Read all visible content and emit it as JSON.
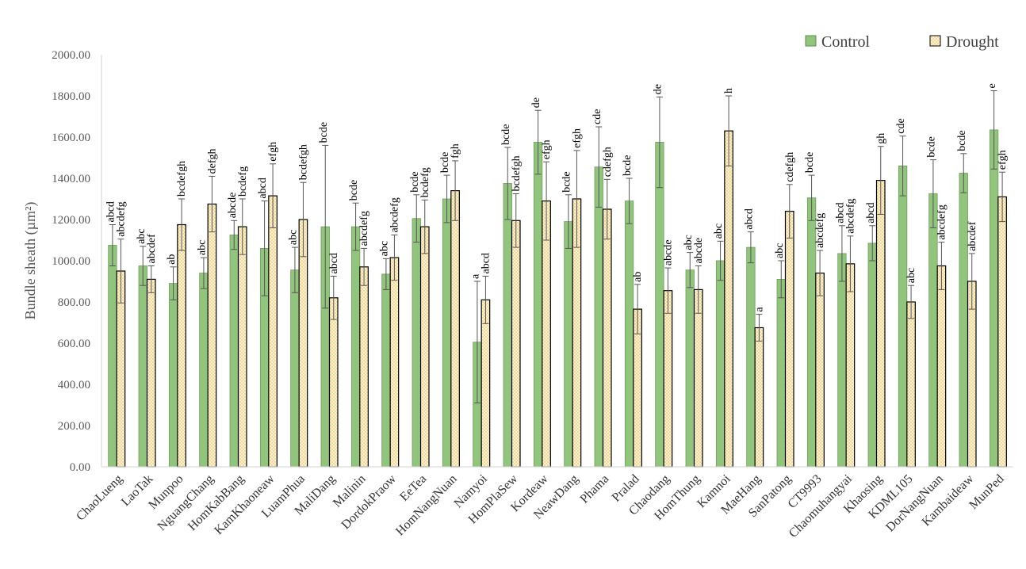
{
  "chart_data": {
    "type": "bar",
    "ylabel": "Bundle  sheath (µm²)",
    "ylim": [
      0,
      2000
    ],
    "ytick_step": 200,
    "ytick_labels": [
      "0.00",
      "200.00",
      "400.00",
      "600.00",
      "800.00",
      "1000.00",
      "1200.00",
      "1400.00",
      "1600.00",
      "1800.00",
      "2000.00"
    ],
    "legend_position": "top-right",
    "grid": false,
    "categories": [
      "ChaoLueng",
      "LaoTak",
      "Munpoo",
      "NguangChang",
      "HomKabBang",
      "KamKhaoneaw",
      "LuamPhua",
      "MaliDang",
      "Malinin",
      "DordokPraow",
      "EeTea",
      "HomNangNuan",
      "Namyoi",
      "HomPlaSew",
      "Kordeaw",
      "NeawDang",
      "Phama",
      "Pralad",
      "Chaodang",
      "HomThung",
      "Kamnoi",
      "MaeHang",
      "SanPatong",
      "CT9993",
      "Chaomuhangyai",
      "Khaosing",
      "KDML105",
      "DorNangNuan",
      "Kambaideaw",
      "MunPed"
    ],
    "series": [
      {
        "name": "Control",
        "color": "#92c47e",
        "values": [
          1075,
          975,
          890,
          940,
          1125,
          1060,
          955,
          1165,
          1165,
          935,
          1205,
          1300,
          605,
          1375,
          1575,
          1190,
          1455,
          1290,
          1575,
          955,
          1000,
          1065,
          910,
          1305,
          1035,
          1085,
          1460,
          1325,
          1425,
          1635
        ],
        "errors": [
          100,
          95,
          80,
          75,
          70,
          230,
          110,
          395,
          115,
          75,
          115,
          115,
          295,
          175,
          155,
          130,
          195,
          110,
          220,
          85,
          95,
          75,
          90,
          110,
          135,
          85,
          145,
          165,
          95,
          190
        ],
        "labels": [
          "abcd",
          "abc",
          "ab",
          "abc",
          "abcde",
          "abcd",
          "abc",
          "bcde",
          "bcde",
          "abc",
          "bcde",
          "bcde",
          "a",
          "bcde",
          "de",
          "bcde",
          "cde",
          "bcde",
          "de",
          "abc",
          "abc",
          "abcd",
          "abc",
          "bcde",
          "abcd",
          "abcd",
          "cde",
          "bcde",
          "bcde",
          "e"
        ]
      },
      {
        "name": "Drought",
        "color": "#fdf1cc",
        "values": [
          950,
          910,
          1175,
          1275,
          1165,
          1315,
          1200,
          820,
          970,
          1015,
          1165,
          1340,
          810,
          1195,
          1290,
          1300,
          1250,
          765,
          855,
          860,
          1630,
          675,
          1240,
          940,
          985,
          1390,
          800,
          975,
          900,
          1310
        ],
        "errors": [
          155,
          65,
          125,
          135,
          135,
          155,
          180,
          105,
          90,
          110,
          130,
          145,
          115,
          130,
          190,
          235,
          145,
          120,
          110,
          115,
          170,
          65,
          130,
          110,
          135,
          165,
          80,
          115,
          135,
          120
        ],
        "labels": [
          "abcdefg",
          "abcdef",
          "bcdefgh",
          "defgh",
          "bcdefg",
          "efgh",
          "bcdefgh",
          "abcd",
          "abcdefg",
          "abcdefg",
          "bcdefg",
          "fgh",
          "abcd",
          "bcdefgh",
          "efgh",
          "efgh",
          "cdefgh",
          "ab",
          "abcde",
          "abcde",
          "h",
          "a",
          "cdefgh",
          "abcdefg",
          "abcdefg",
          "gh",
          "abc",
          "abcdefg",
          "abcdef",
          "efgh"
        ]
      }
    ]
  }
}
